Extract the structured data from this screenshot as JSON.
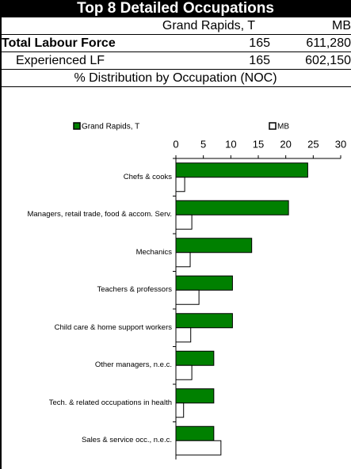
{
  "header": {
    "title": "Top 8 Detailed Occupations",
    "columns": [
      "Grand Rapids, T",
      "MB"
    ],
    "rows": [
      {
        "label": "Total Labour Force",
        "values": [
          "165",
          "611,280"
        ]
      },
      {
        "label": "Experienced LF",
        "values": [
          "165",
          "602,150"
        ]
      }
    ],
    "subtitle": "% Distribution by Occupation (NOC)"
  },
  "chart_data": {
    "type": "hbar",
    "categories": [
      "Chefs & cooks",
      "Managers, retail trade, food & accom. Serv.",
      "Mechanics",
      "Teachers & professors",
      "Child care & home support workers",
      "Other managers, n.e.c.",
      "Tech. & related occupations in health",
      "Sales & service occ., n.e.c."
    ],
    "series": [
      {
        "name": "Grand Rapids, T",
        "color": "#008000",
        "values": [
          24,
          20.5,
          13.8,
          10.3,
          10.3,
          6.9,
          6.9,
          6.9
        ]
      },
      {
        "name": "MB",
        "color": "#ffffff",
        "values": [
          1.6,
          2.9,
          2.6,
          4.2,
          2.7,
          2.9,
          1.4,
          8.2
        ]
      }
    ],
    "xlim": [
      0,
      30
    ],
    "xticks": [
      0,
      5,
      10,
      15,
      20,
      25,
      30
    ],
    "legend": "top"
  }
}
